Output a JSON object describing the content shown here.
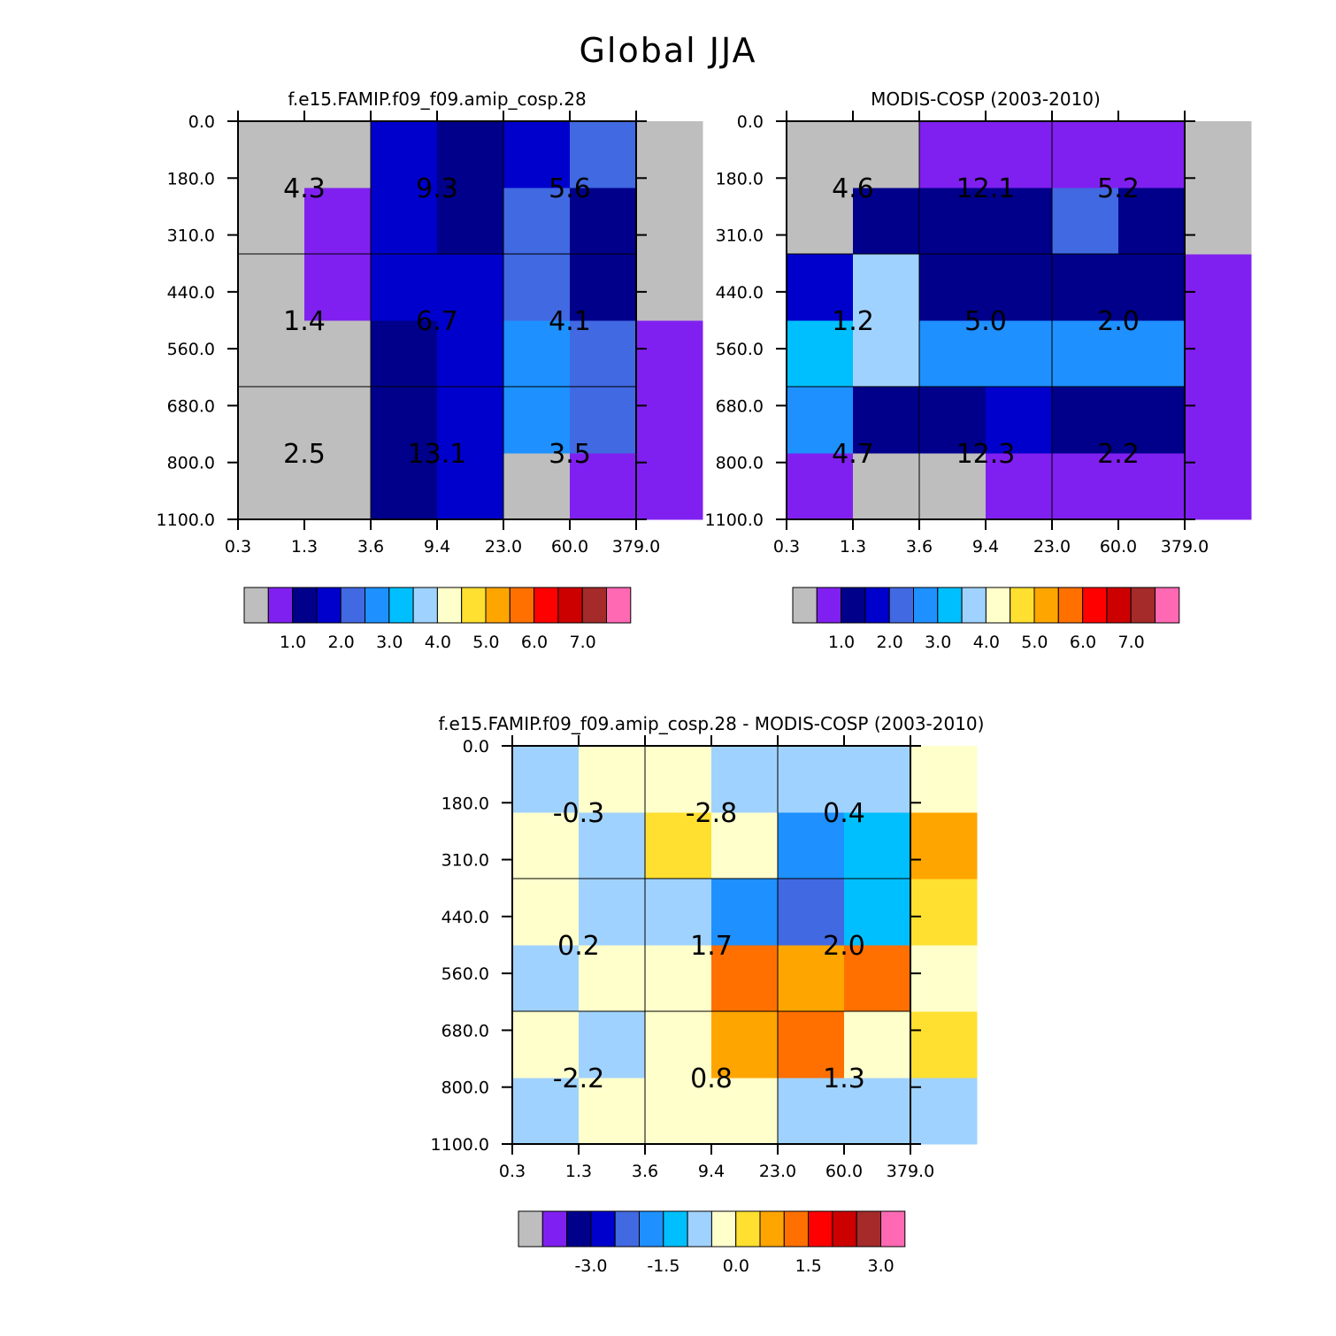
{
  "title": "Global JJA",
  "colors": [
    "#bebebe",
    "#8020f0",
    "#00008b",
    "#0000cd",
    "#4169e1",
    "#1e90ff",
    "#00bfff",
    "#a0d2ff",
    "#ffffcc",
    "#ffe030",
    "#ffa500",
    "#ff7000",
    "#ff0000",
    "#cd0000",
    "#a52a2a",
    "#ff69b4"
  ],
  "chart_data": [
    {
      "type": "heatmap",
      "title": "f.e15.FAMIP.f09_f09.amip_cosp.28",
      "x_tick_labels": [
        "0.3",
        "1.3",
        "3.6",
        "9.4",
        "23.0",
        "60.0",
        "379.0"
      ],
      "y_tick_labels": [
        "0.0",
        "180.0",
        "310.0",
        "440.0",
        "560.0",
        "680.0",
        "800.0",
        "1100.0"
      ],
      "cell_color_index": [
        [
          0,
          0,
          2,
          3,
          0,
          1,
          1
        ],
        [
          0,
          0,
          2,
          3,
          5,
          4,
          1
        ],
        [
          0,
          0,
          2,
          3,
          5,
          4,
          1
        ],
        [
          0,
          1,
          3,
          3,
          4,
          2,
          0
        ],
        [
          0,
          1,
          3,
          2,
          4,
          2,
          0
        ],
        [
          0,
          0,
          3,
          2,
          3,
          4,
          0
        ]
      ],
      "group_values": [
        [
          "2.5",
          "13.1",
          "3.5"
        ],
        [
          "1.4",
          "6.7",
          "4.1"
        ],
        [
          "4.3",
          "9.3",
          "5.6"
        ]
      ],
      "colorbar_labels": [
        "1.0",
        "2.0",
        "3.0",
        "4.0",
        "5.0",
        "6.0",
        "7.0"
      ]
    },
    {
      "type": "heatmap",
      "title": "MODIS-COSP (2003-2010)",
      "x_tick_labels": [
        "0.3",
        "1.3",
        "3.6",
        "9.4",
        "23.0",
        "60.0",
        "379.0"
      ],
      "y_tick_labels": [
        "0.0",
        "180.0",
        "310.0",
        "440.0",
        "560.0",
        "680.0",
        "800.0",
        "1100.0"
      ],
      "cell_color_index": [
        [
          1,
          0,
          0,
          1,
          1,
          1,
          1
        ],
        [
          5,
          2,
          2,
          3,
          2,
          2,
          1
        ],
        [
          6,
          7,
          5,
          5,
          5,
          5,
          1
        ],
        [
          3,
          7,
          2,
          2,
          2,
          2,
          1
        ],
        [
          0,
          2,
          2,
          2,
          4,
          2,
          0
        ],
        [
          0,
          0,
          1,
          1,
          1,
          1,
          0
        ]
      ],
      "group_values": [
        [
          "4.7",
          "12.3",
          "2.2"
        ],
        [
          "1.2",
          "5.0",
          "2.0"
        ],
        [
          "4.6",
          "12.1",
          "5.2"
        ]
      ],
      "colorbar_labels": [
        "1.0",
        "2.0",
        "3.0",
        "4.0",
        "5.0",
        "6.0",
        "7.0"
      ]
    },
    {
      "type": "heatmap",
      "title": "f.e15.FAMIP.f09_f09.amip_cosp.28 - MODIS-COSP (2003-2010)",
      "x_tick_labels": [
        "0.3",
        "1.3",
        "3.6",
        "9.4",
        "23.0",
        "60.0",
        "379.0"
      ],
      "y_tick_labels": [
        "0.0",
        "180.0",
        "310.0",
        "440.0",
        "560.0",
        "680.0",
        "800.0",
        "1100.0"
      ],
      "cell_color_index": [
        [
          7,
          8,
          8,
          8,
          7,
          7,
          7
        ],
        [
          8,
          7,
          8,
          10,
          11,
          8,
          9
        ],
        [
          7,
          8,
          8,
          11,
          10,
          11,
          8
        ],
        [
          8,
          7,
          7,
          5,
          4,
          6,
          9
        ],
        [
          8,
          7,
          9,
          8,
          5,
          6,
          10
        ],
        [
          7,
          8,
          8,
          7,
          7,
          7,
          8
        ]
      ],
      "group_values": [
        [
          "-2.2",
          "0.8",
          "1.3"
        ],
        [
          "0.2",
          "1.7",
          "2.0"
        ],
        [
          "-0.3",
          "-2.8",
          "0.4"
        ]
      ],
      "colorbar_labels": [
        "-3.0",
        "-1.5",
        "0.0",
        "1.5",
        "3.0"
      ]
    }
  ]
}
